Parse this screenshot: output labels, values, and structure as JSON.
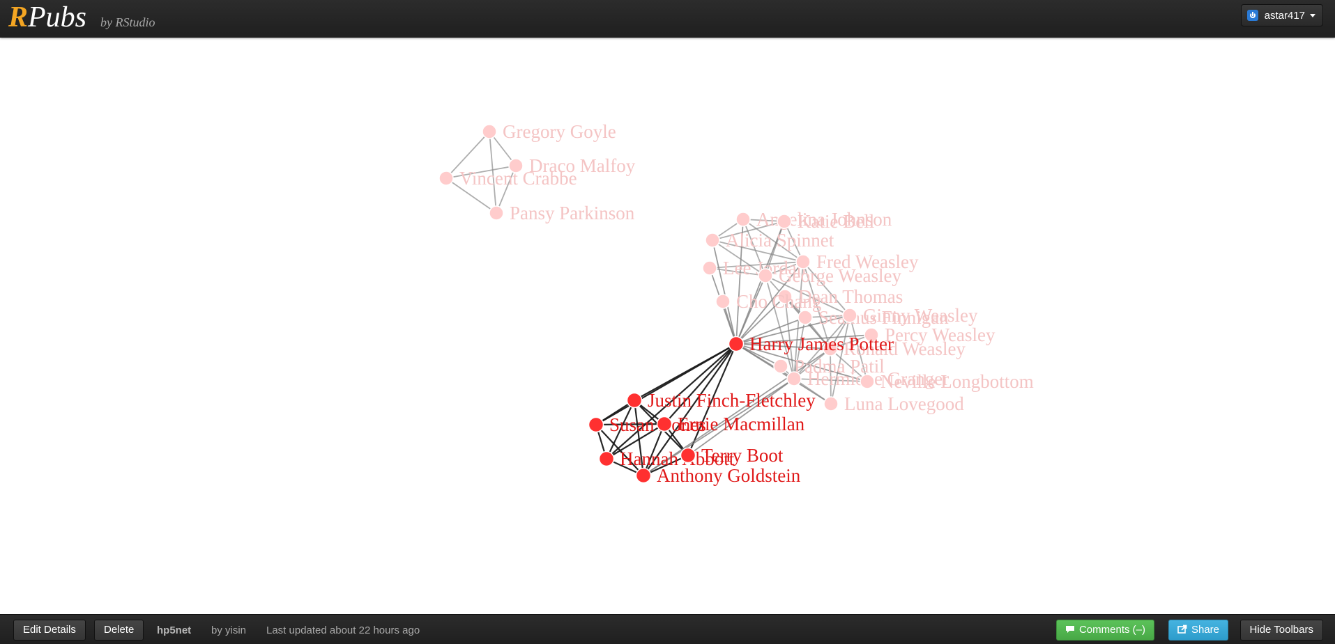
{
  "header": {
    "logo_r": "R",
    "logo_rest": "Pubs",
    "byline": "by RStudio",
    "user": "astar417"
  },
  "footer": {
    "edit_label": "Edit Details",
    "delete_label": "Delete",
    "doc_title": "hp5net",
    "author": "by yisin",
    "updated": "Last updated about 22 hours ago",
    "comments_label": "Comments (–)",
    "share_label": "Share",
    "hide_label": "Hide Toolbars"
  },
  "colors": {
    "highlight": "#ff3030",
    "faded": "#ffcccc",
    "highlight_text": "#e01818",
    "faded_text": "#f4c4c4"
  },
  "network": {
    "nodes": [
      {
        "label": "Gregory Goyle",
        "active": false
      },
      {
        "label": "Draco Malfoy",
        "active": false
      },
      {
        "label": "Vincent Crabbe",
        "active": false
      },
      {
        "label": "Pansy Parkinson",
        "active": false
      },
      {
        "label": "Angelina Johnson",
        "active": false
      },
      {
        "label": "Katie Bell",
        "active": false
      },
      {
        "label": "Alicia Spinnet",
        "active": false
      },
      {
        "label": "Lee Jordan",
        "active": false
      },
      {
        "label": "Fred Weasley",
        "active": false
      },
      {
        "label": "George Weasley",
        "active": false
      },
      {
        "label": "Dean Thomas",
        "active": false
      },
      {
        "label": "Cho Chang",
        "active": false
      },
      {
        "label": "Seamus Finnigan",
        "active": false
      },
      {
        "label": "Ginny Weasley",
        "active": false
      },
      {
        "label": "Percy Weasley",
        "active": false
      },
      {
        "label": "Harry James Potter",
        "active": true
      },
      {
        "label": "Ronald Weasley",
        "active": false
      },
      {
        "label": "Padma Patil",
        "active": false
      },
      {
        "label": "Hermione Granger",
        "active": false
      },
      {
        "label": "Neville Longbottom",
        "active": false
      },
      {
        "label": "Luna Lovegood",
        "active": false
      },
      {
        "label": "Justin Finch-Fletchley",
        "active": true
      },
      {
        "label": "Susan Bones",
        "active": true
      },
      {
        "label": "Ernie Macmillan",
        "active": true
      },
      {
        "label": "Hannah Abbott",
        "active": true
      },
      {
        "label": "Terry Boot",
        "active": true
      },
      {
        "label": "Anthony Goldstein",
        "active": true
      }
    ],
    "edges": [
      [
        0,
        1
      ],
      [
        0,
        2
      ],
      [
        0,
        3
      ],
      [
        1,
        2
      ],
      [
        1,
        3
      ],
      [
        2,
        3
      ],
      [
        4,
        5
      ],
      [
        4,
        6
      ],
      [
        4,
        8
      ],
      [
        4,
        9
      ],
      [
        4,
        15
      ],
      [
        5,
        6
      ],
      [
        5,
        8
      ],
      [
        5,
        9
      ],
      [
        5,
        15
      ],
      [
        6,
        8
      ],
      [
        6,
        9
      ],
      [
        6,
        15
      ],
      [
        7,
        8
      ],
      [
        7,
        9
      ],
      [
        7,
        15
      ],
      [
        8,
        9
      ],
      [
        8,
        13
      ],
      [
        8,
        15
      ],
      [
        8,
        16
      ],
      [
        8,
        18
      ],
      [
        9,
        13
      ],
      [
        9,
        15
      ],
      [
        9,
        16
      ],
      [
        9,
        18
      ],
      [
        10,
        12
      ],
      [
        10,
        15
      ],
      [
        10,
        16
      ],
      [
        10,
        18
      ],
      [
        11,
        15
      ],
      [
        12,
        13
      ],
      [
        12,
        15
      ],
      [
        12,
        16
      ],
      [
        12,
        18
      ],
      [
        13,
        15
      ],
      [
        13,
        16
      ],
      [
        13,
        18
      ],
      [
        13,
        19
      ],
      [
        13,
        20
      ],
      [
        14,
        16
      ],
      [
        14,
        15
      ],
      [
        15,
        16
      ],
      [
        15,
        18
      ],
      [
        15,
        19
      ],
      [
        15,
        17
      ],
      [
        15,
        20
      ],
      [
        16,
        18
      ],
      [
        16,
        19
      ],
      [
        16,
        20
      ],
      [
        18,
        19
      ],
      [
        18,
        20
      ],
      [
        17,
        18
      ],
      [
        15,
        21
      ],
      [
        15,
        22
      ],
      [
        15,
        23
      ],
      [
        15,
        24
      ],
      [
        15,
        25
      ],
      [
        15,
        26
      ],
      [
        21,
        22
      ],
      [
        21,
        23
      ],
      [
        21,
        24
      ],
      [
        21,
        26
      ],
      [
        22,
        23
      ],
      [
        22,
        24
      ],
      [
        22,
        26
      ],
      [
        23,
        24
      ],
      [
        23,
        26
      ],
      [
        24,
        26
      ],
      [
        25,
        26
      ],
      [
        23,
        25
      ],
      [
        21,
        25
      ],
      [
        18,
        25
      ],
      [
        18,
        26
      ],
      [
        16,
        26
      ]
    ]
  }
}
